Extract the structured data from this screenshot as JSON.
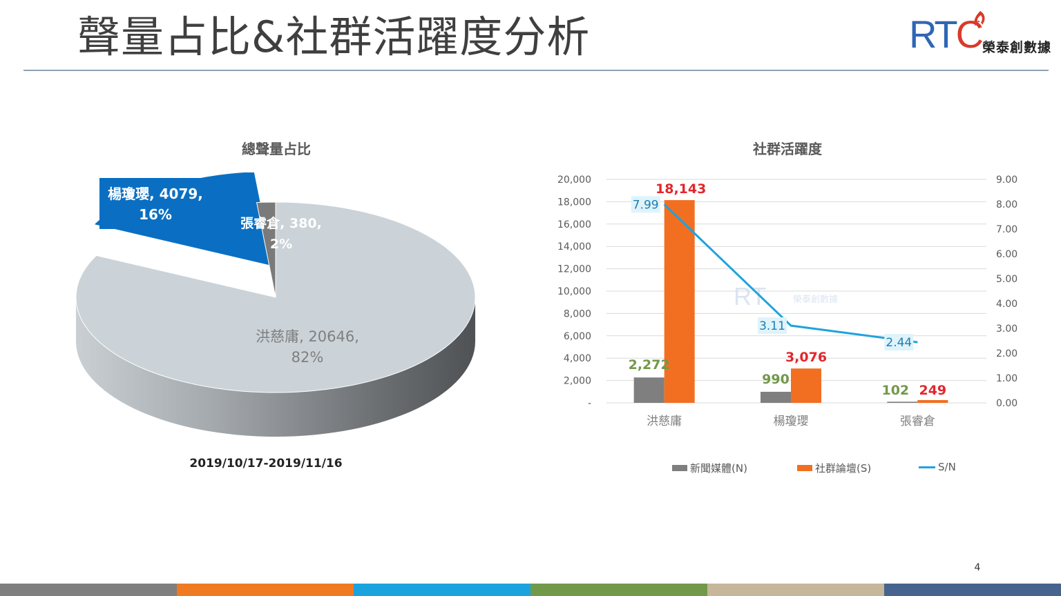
{
  "slide": {
    "title": "聲量占比&社群活躍度分析",
    "page_number": "4",
    "date_range": "2019/10/17-2019/11/16"
  },
  "logo": {
    "rt": "RT",
    "c": "C",
    "name": "榮泰創數據"
  },
  "watermark": {
    "rt": "RT",
    "name": "榮泰創數據"
  },
  "colors": {
    "footer": [
      "#7f7f7f",
      "#f07a22",
      "#1aa3dd",
      "#72984a",
      "#c6b79b",
      "#46648e"
    ],
    "pie_main": "#cbd3d8",
    "pie_blue": "#0a6fc2",
    "pie_gray": "#7a7a7a",
    "bar_news": "#7f7f7f",
    "bar_social": "#f26f21",
    "line_sn": "#1ea3dc"
  },
  "chart_data": [
    {
      "type": "pie",
      "title": "總聲量占比",
      "slices": [
        {
          "name": "洪慈庸",
          "value": 20646,
          "percent": "82%",
          "label": "洪慈庸, 20646,",
          "label2": "82%"
        },
        {
          "name": "楊瓊瓔",
          "value": 4079,
          "percent": "16%",
          "label": "楊瓊瓔, 4079,",
          "label2": "16%"
        },
        {
          "name": "張睿倉",
          "value": 380,
          "percent": "2%",
          "label": "張睿倉, 380,",
          "label2": "2%"
        }
      ]
    },
    {
      "type": "bar",
      "title": "社群活躍度",
      "categories": [
        "洪慈庸",
        "楊瓊瓔",
        "張睿倉"
      ],
      "series": [
        {
          "name": "新聞媒體(N)",
          "values": [
            2272,
            990,
            102
          ],
          "labels": [
            "2,272",
            "990",
            "102"
          ],
          "label_color": "#72984a"
        },
        {
          "name": "社群論壇(S)",
          "values": [
            18143,
            3076,
            249
          ],
          "labels": [
            "18,143",
            "3,076",
            "249"
          ],
          "label_color": "#e2262c"
        },
        {
          "name": "S/N",
          "type": "line",
          "axis": "right",
          "values": [
            7.99,
            3.11,
            2.44
          ],
          "labels": [
            "7.99",
            "3.11",
            "2.44"
          ]
        }
      ],
      "ylim": [
        0,
        20000
      ],
      "y2lim": [
        0,
        9
      ],
      "y_ticks": [
        "-",
        "2,000",
        "4,000",
        "6,000",
        "8,000",
        "10,000",
        "12,000",
        "14,000",
        "16,000",
        "18,000",
        "20,000"
      ],
      "y2_ticks": [
        "0.00",
        "1.00",
        "2.00",
        "3.00",
        "4.00",
        "5.00",
        "6.00",
        "7.00",
        "8.00",
        "9.00"
      ],
      "grid": true,
      "legend": "bottom"
    }
  ]
}
